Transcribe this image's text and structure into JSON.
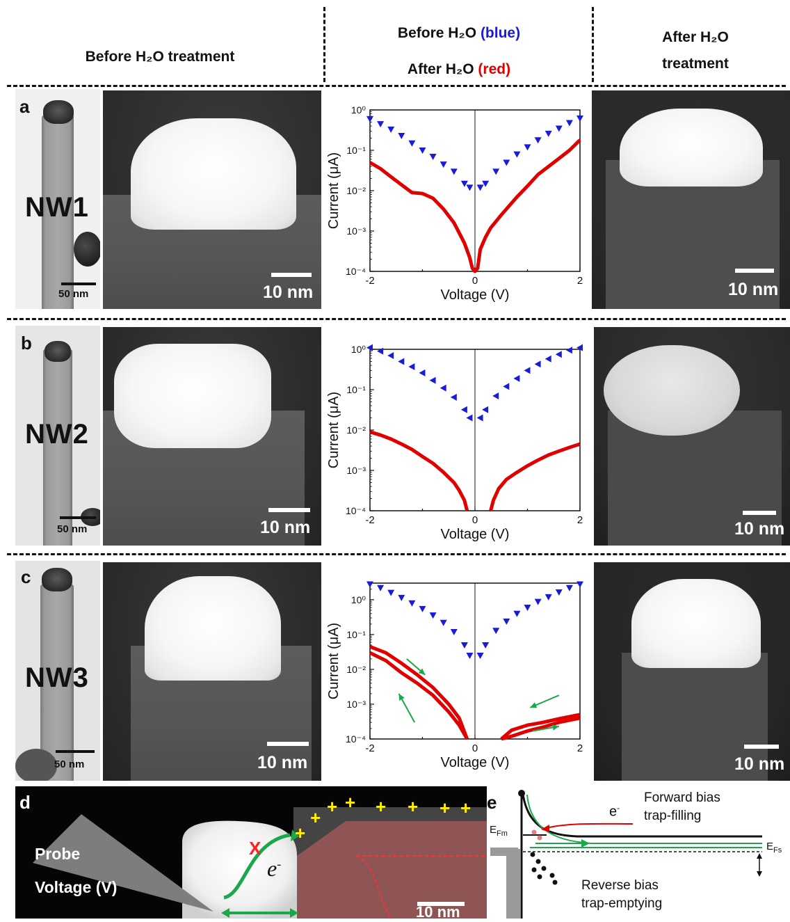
{
  "headers": {
    "before": "Before H₂O treatment",
    "middle_line1_prefix": "Before H₂O",
    "middle_line1_suffix": "(blue)",
    "middle_line2_prefix": "After H₂O",
    "middle_line2_suffix": "(red)",
    "after_line1": "After H₂O",
    "after_line2": "treatment"
  },
  "panels": [
    {
      "letter": "a",
      "nw_label": "NW1",
      "sem_scale": "50 nm",
      "tem_scale": "10 nm",
      "tem_after_scale": "10 nm"
    },
    {
      "letter": "b",
      "nw_label": "NW2",
      "sem_scale": "50 nm",
      "tem_scale": "10 nm",
      "tem_after_scale": "10 nm"
    },
    {
      "letter": "c",
      "nw_label": "NW3",
      "sem_scale": "50 nm",
      "tem_scale": "10 nm",
      "tem_after_scale": "10 nm"
    }
  ],
  "chart_data": [
    {
      "type": "scatter",
      "xlabel": "Voltage (V)",
      "ylabel": "Current (μA)",
      "xlim": [
        -2,
        2
      ],
      "ylim": [
        0.0001,
        1
      ],
      "yscale": "log",
      "x_ticks": [
        "-2",
        "0",
        "2"
      ],
      "y_ticks": [
        "10⁻⁴",
        "10⁻³",
        "10⁻²",
        "10⁻¹",
        "10⁰"
      ],
      "series": [
        {
          "color": "#1a1adb",
          "marker": "triangle-down",
          "x": [
            -2.0,
            -1.8,
            -1.6,
            -1.4,
            -1.2,
            -1.0,
            -0.8,
            -0.6,
            -0.4,
            -0.2,
            -0.1,
            0.1,
            0.2,
            0.4,
            0.6,
            0.8,
            1.0,
            1.2,
            1.4,
            1.6,
            1.8,
            2.0
          ],
          "y": [
            0.6,
            0.45,
            0.33,
            0.23,
            0.15,
            0.1,
            0.07,
            0.045,
            0.03,
            0.015,
            0.012,
            0.012,
            0.015,
            0.03,
            0.05,
            0.08,
            0.12,
            0.18,
            0.26,
            0.35,
            0.48,
            0.62
          ]
        },
        {
          "color": "#e00000",
          "marker": "line",
          "x": [
            -2.0,
            -1.8,
            -1.6,
            -1.4,
            -1.2,
            -1.0,
            -0.8,
            -0.6,
            -0.4,
            -0.3,
            -0.2,
            -0.1,
            -0.05,
            0.0,
            0.05,
            0.1,
            0.2,
            0.3,
            0.5,
            0.8,
            1.0,
            1.2,
            1.5,
            1.8,
            2.0
          ],
          "y": [
            0.05,
            0.035,
            0.022,
            0.014,
            0.009,
            0.0085,
            0.0065,
            0.0035,
            0.0016,
            0.0009,
            0.0005,
            0.00022,
            0.00012,
            0.0001,
            0.00012,
            0.00035,
            0.0007,
            0.0012,
            0.0025,
            0.007,
            0.013,
            0.025,
            0.05,
            0.1,
            0.18
          ]
        }
      ]
    },
    {
      "type": "scatter",
      "xlabel": "Voltage (V)",
      "ylabel": "Current (μA)",
      "xlim": [
        -2,
        2
      ],
      "ylim": [
        0.0001,
        1
      ],
      "yscale": "log",
      "x_ticks": [
        "-2",
        "0",
        "2"
      ],
      "y_ticks": [
        "10⁻⁴",
        "10⁻³",
        "10⁻²",
        "10⁻¹",
        "10⁰"
      ],
      "series": [
        {
          "color": "#1a1adb",
          "marker": "triangle-left",
          "x": [
            -2.0,
            -1.8,
            -1.6,
            -1.4,
            -1.2,
            -1.0,
            -0.8,
            -0.6,
            -0.4,
            -0.2,
            -0.1,
            0.1,
            0.2,
            0.4,
            0.6,
            0.8,
            1.0,
            1.2,
            1.4,
            1.6,
            1.8,
            2.0
          ],
          "y": [
            1.1,
            0.9,
            0.7,
            0.5,
            0.37,
            0.26,
            0.17,
            0.11,
            0.065,
            0.032,
            0.02,
            0.02,
            0.032,
            0.07,
            0.12,
            0.19,
            0.3,
            0.43,
            0.58,
            0.75,
            0.95,
            1.1
          ]
        },
        {
          "color": "#e00000",
          "marker": "line",
          "x": [
            -2.0,
            -1.8,
            -1.6,
            -1.4,
            -1.2,
            -1.0,
            -0.8,
            -0.6,
            -0.4,
            -0.3,
            -0.2,
            -0.15,
            0.3,
            0.35,
            0.45,
            0.6,
            0.8,
            1.0,
            1.2,
            1.4,
            1.6,
            1.8,
            2.0
          ],
          "y": [
            0.009,
            0.0075,
            0.006,
            0.0045,
            0.0033,
            0.0022,
            0.0015,
            0.0009,
            0.0005,
            0.00032,
            0.00018,
            0.0001,
            0.0001,
            0.00018,
            0.00035,
            0.0006,
            0.0009,
            0.0013,
            0.0018,
            0.0024,
            0.003,
            0.0037,
            0.0045
          ]
        }
      ]
    },
    {
      "type": "scatter",
      "xlabel": "Voltage (V)",
      "ylabel": "Current (μA)",
      "xlim": [
        -2,
        2
      ],
      "ylim": [
        0.0001,
        3
      ],
      "yscale": "log",
      "x_ticks": [
        "-2",
        "0",
        "2"
      ],
      "y_ticks": [
        "10⁻⁴",
        "10⁻³",
        "10⁻²",
        "10⁻¹",
        "10⁰"
      ],
      "series": [
        {
          "color": "#1a1adb",
          "marker": "triangle-down",
          "x": [
            -2.0,
            -1.8,
            -1.6,
            -1.4,
            -1.2,
            -1.0,
            -0.8,
            -0.6,
            -0.4,
            -0.2,
            -0.1,
            0.1,
            0.2,
            0.4,
            0.6,
            0.8,
            1.0,
            1.2,
            1.4,
            1.6,
            1.8,
            2.0
          ],
          "y": [
            2.8,
            2.2,
            1.6,
            1.15,
            0.8,
            0.55,
            0.36,
            0.22,
            0.12,
            0.05,
            0.025,
            0.025,
            0.05,
            0.13,
            0.24,
            0.4,
            0.6,
            0.88,
            1.2,
            1.65,
            2.2,
            2.8
          ]
        },
        {
          "color": "#e00000",
          "marker": "line",
          "x": [
            -2.0,
            -1.7,
            -1.4,
            -1.1,
            -0.8,
            -0.5,
            -0.3,
            -0.15,
            0.5,
            0.7,
            1.0,
            1.3,
            1.6,
            2.0
          ],
          "y": [
            0.045,
            0.03,
            0.015,
            0.007,
            0.003,
            0.001,
            0.0004,
            0.0001,
            0.0001,
            0.00018,
            0.00025,
            0.0003,
            0.00038,
            0.0005
          ]
        },
        {
          "color": "#e00000",
          "marker": "line",
          "x": [
            -2.0,
            -1.7,
            -1.4,
            -1.1,
            -0.8,
            -0.5,
            -0.3,
            -0.15,
            0.5,
            0.7,
            1.0,
            1.3,
            1.6,
            2.0
          ],
          "y": [
            0.03,
            0.018,
            0.008,
            0.004,
            0.0018,
            0.0006,
            0.00025,
            0.0001,
            0.0001,
            0.00012,
            0.00017,
            0.00022,
            0.0003,
            0.0004
          ]
        }
      ]
    }
  ],
  "panel_d": {
    "letter": "d",
    "probe_label": "Probe",
    "voltage_label": "Voltage (V)",
    "electron_label": "e",
    "electron_sup": "-",
    "blocked_mark": "X",
    "plus_sign": "+",
    "scale": "10 nm"
  },
  "panel_e": {
    "letter": "e",
    "forward_line1": "Forward bias",
    "forward_line2": "trap-filling",
    "reverse_line1": "Reverse bias",
    "reverse_line2": "trap-emptying",
    "efm_main": "E",
    "efm_sub": "Fm",
    "efs_main": "E",
    "efs_sub": "Fs",
    "electron_label": "e",
    "electron_sup": "-"
  }
}
